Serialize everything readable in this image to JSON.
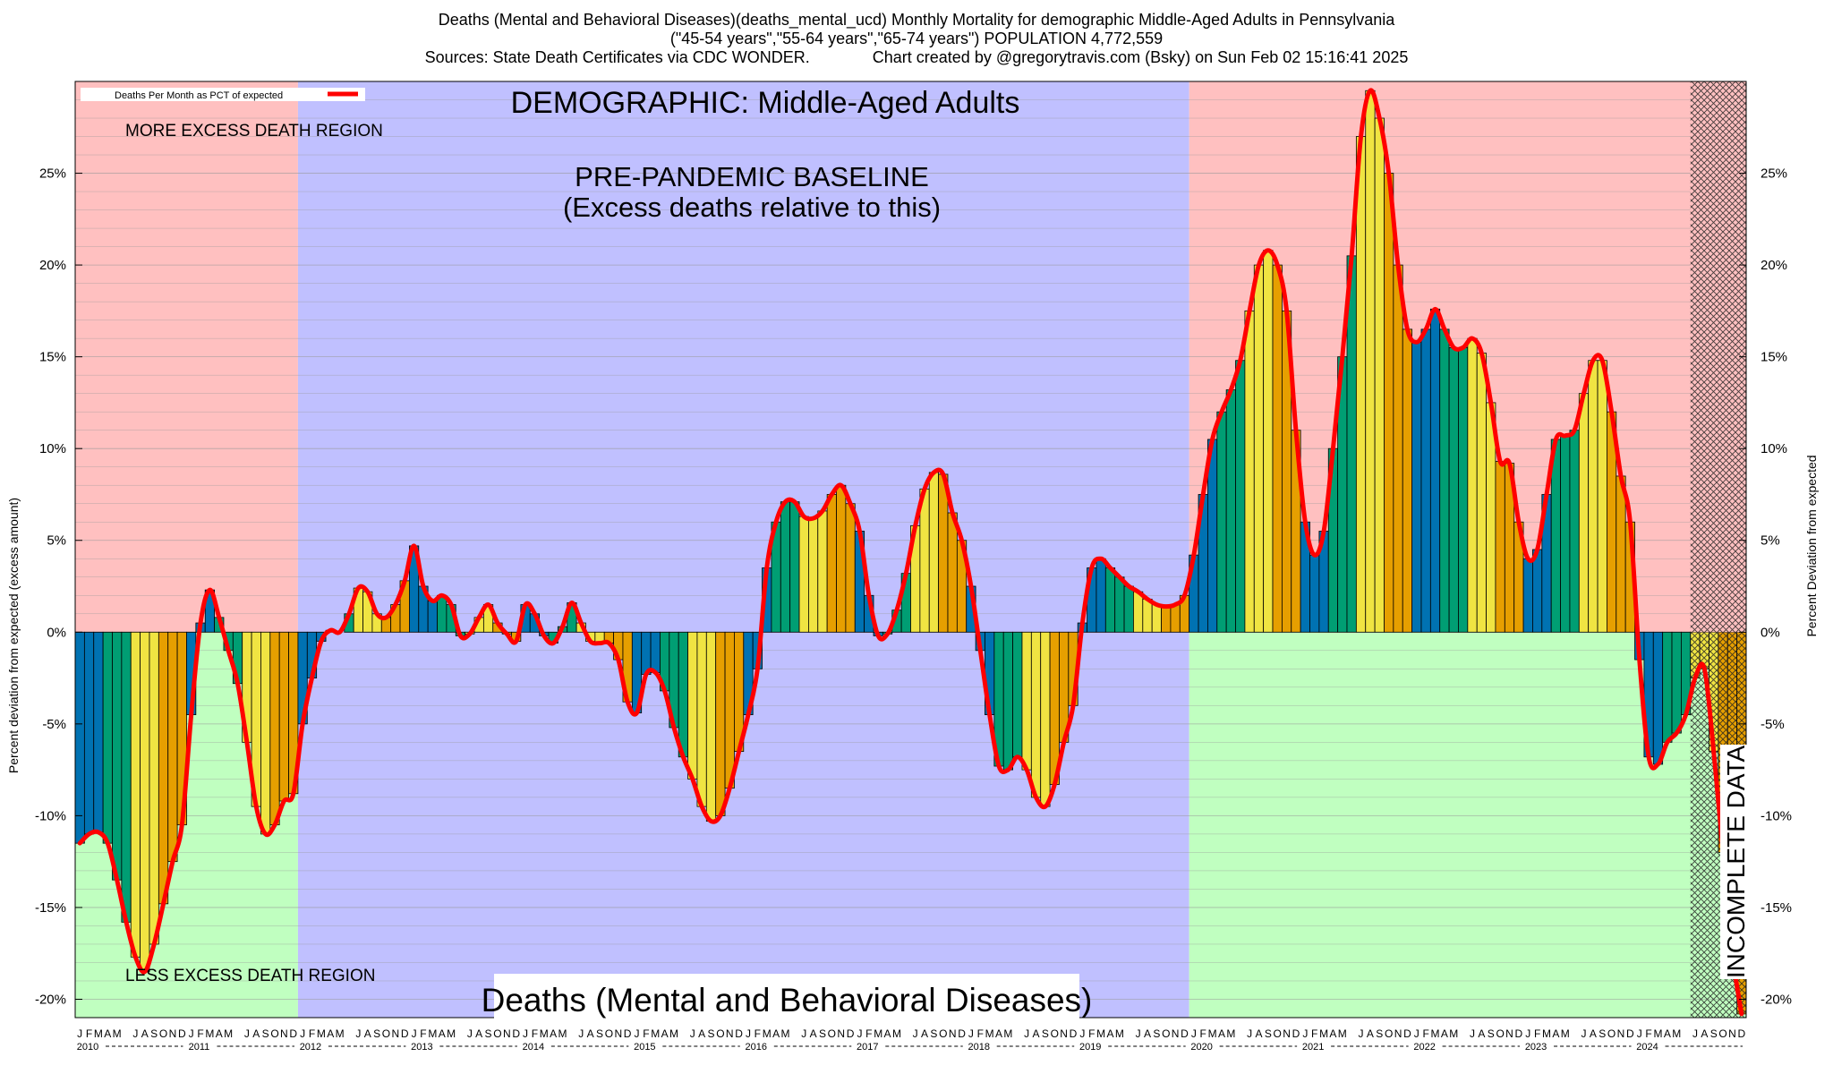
{
  "header": {
    "title_line1": "Deaths (Mental and Behavioral Diseases)(deaths_mental_ucd) Monthly Mortality for demographic Middle-Aged Adults in Pennsylvania",
    "title_line2": "(\"45-54 years\",\"55-64 years\",\"65-74 years\") POPULATION 4,772,559",
    "title_line3": "Sources: State Death Certificates via CDC WONDER.              Chart created by @gregorytravis.com (Bsky) on Sun Feb 02 15:16:41 2025"
  },
  "annotations": {
    "demographic": "DEMOGRAPHIC: Middle-Aged Adults",
    "baseline_line1": "PRE-PANDEMIC BASELINE",
    "baseline_line2": "(Excess deaths relative to this)",
    "more_region": "MORE EXCESS DEATH REGION",
    "less_region": "LESS EXCESS DEATH REGION",
    "bottom_title": "Deaths (Mental and Behavioral Diseases)",
    "incomplete": "INCOMPLETE DATA"
  },
  "legend": {
    "label": "Deaths Per Month as PCT of expected"
  },
  "colors": {
    "more_region": "#ffc0c0",
    "less_region": "#c0ffc0",
    "baseline_region": "#c0c0ff",
    "line": "#ff0000",
    "bar_blue": "#0072b2",
    "bar_green": "#009e73",
    "bar_yellow": "#f0e442",
    "bar_orange": "#e69f00"
  },
  "chart_data": {
    "type": "bar",
    "title": "Deaths (Mental and Behavioral Diseases)",
    "ylabel_left": "Percent deviation from expected (excess amount)",
    "ylabel_right": "Percent Deviation from expected",
    "ylim": [
      -21,
      30
    ],
    "yticks": [
      -20,
      -15,
      -10,
      -5,
      0,
      5,
      10,
      15,
      20,
      25
    ],
    "ytick_labels": [
      "-20%",
      "-15%",
      "-10%",
      "-5%",
      "0%",
      "5%",
      "10%",
      "15%",
      "20%",
      "25%"
    ],
    "grid": true,
    "legend_position": "top-left",
    "month_letters": [
      "J",
      "F",
      "M",
      "A",
      "M",
      "J",
      "J",
      "A",
      "S",
      "O",
      "N",
      "D"
    ],
    "years": [
      "2010",
      "2011",
      "2012",
      "2013",
      "2014",
      "2015",
      "2016",
      "2017",
      "2018",
      "2019",
      "2020",
      "2021",
      "2022",
      "2023",
      "2024"
    ],
    "baseline_years": [
      "2012",
      "2013",
      "2014",
      "2015",
      "2016",
      "2017",
      "2018",
      "2019"
    ],
    "incomplete_from": "2024-07",
    "series": [
      {
        "name": "Deaths Per Month as PCT of expected",
        "values": [
          -11.5,
          -11.0,
          -10.9,
          -11.5,
          -13.5,
          -15.8,
          -17.7,
          -18.5,
          -17.0,
          -14.8,
          -12.5,
          -10.5,
          -4.5,
          0.5,
          2.3,
          0.8,
          -1.0,
          -2.8,
          -6.0,
          -9.5,
          -11.0,
          -10.5,
          -9.2,
          -8.8,
          -5.0,
          -2.5,
          -0.5,
          0.1,
          0.0,
          1.0,
          2.4,
          2.2,
          1.0,
          0.8,
          1.5,
          2.8,
          4.7,
          2.5,
          1.7,
          2.0,
          1.5,
          -0.2,
          -0.1,
          0.8,
          1.5,
          0.5,
          -0.1,
          -0.5,
          1.5,
          1.0,
          -0.2,
          -0.6,
          0.3,
          1.6,
          0.5,
          -0.5,
          -0.6,
          -0.6,
          -1.5,
          -3.8,
          -4.4,
          -2.3,
          -2.2,
          -3.2,
          -5.2,
          -6.8,
          -8.0,
          -9.5,
          -10.3,
          -10.0,
          -8.5,
          -6.5,
          -4.5,
          -2.0,
          3.5,
          6.0,
          7.1,
          7.1,
          6.3,
          6.2,
          6.6,
          7.5,
          8.0,
          7.0,
          5.5,
          2.0,
          -0.2,
          -0.1,
          1.2,
          3.2,
          5.8,
          7.8,
          8.7,
          8.6,
          6.5,
          5.0,
          2.5,
          -1.0,
          -4.5,
          -7.3,
          -7.5,
          -6.8,
          -7.5,
          -9.0,
          -9.5,
          -8.3,
          -6.0,
          -4.0,
          0.5,
          3.5,
          4.0,
          3.5,
          3.0,
          2.5,
          2.2,
          1.8,
          1.5,
          1.4,
          1.5,
          2.0,
          4.2,
          7.5,
          10.5,
          12.0,
          13.2,
          14.8,
          17.5,
          20.0,
          20.8,
          20.0,
          17.5,
          11.0,
          6.0,
          4.2,
          5.5,
          10.0,
          15.0,
          20.5,
          27.0,
          29.5,
          28.0,
          25.0,
          20.0,
          16.5,
          15.8,
          16.5,
          17.6,
          16.5,
          15.5,
          15.5,
          16.0,
          15.2,
          12.5,
          9.3,
          9.2,
          6.0,
          4.0,
          4.5,
          7.5,
          10.5,
          10.7,
          11.0,
          13.0,
          14.8,
          14.8,
          12.0,
          8.5,
          6.0,
          -1.5,
          -6.8,
          -7.2,
          -6.0,
          -5.5,
          -4.5,
          -2.5,
          -2.0,
          -6.5,
          -12.0,
          -17.5,
          -20.8
        ]
      }
    ]
  }
}
